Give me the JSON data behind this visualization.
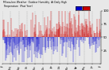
{
  "background_color": "#e8e8e8",
  "plot_bg_color": "#e8e8e8",
  "bar_color_above": "#cc0000",
  "bar_color_below": "#0000cc",
  "ylim": [
    0,
    100
  ],
  "y_ticks": [
    25,
    50,
    75,
    100
  ],
  "n_points": 365,
  "ref_val": 50,
  "seed": 42,
  "title_fontsize": 3.5,
  "tick_fontsize": 2.8
}
